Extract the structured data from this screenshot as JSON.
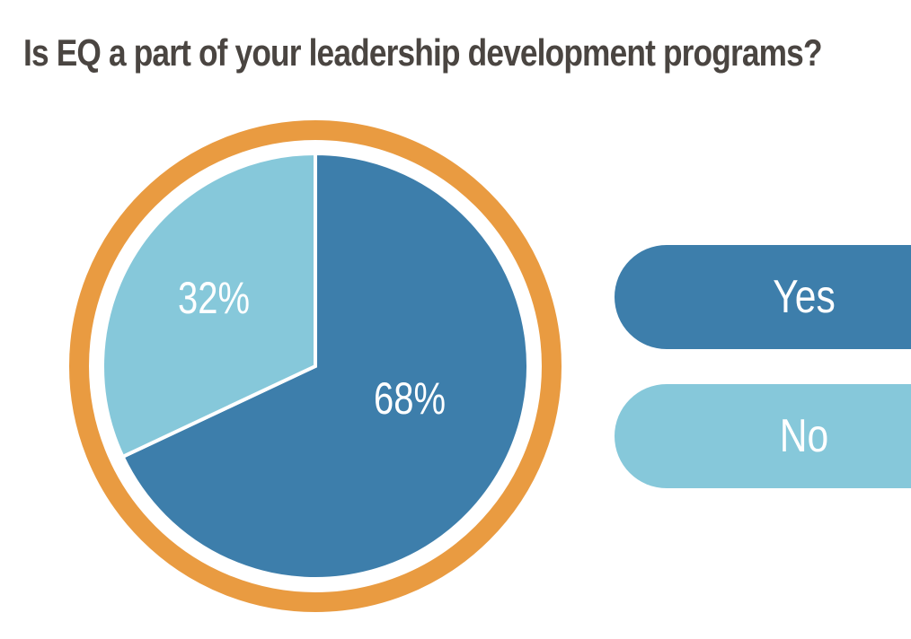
{
  "chart_data": {
    "type": "pie",
    "title": "Is EQ a part of your leadership development programs?",
    "slices": [
      {
        "name": "Yes",
        "value": 68,
        "label": "68%",
        "color": "#3d7eab"
      },
      {
        "name": "No",
        "value": 32,
        "label": "32%",
        "color": "#86c8da"
      }
    ],
    "ring_color": "#e99b41",
    "legend": {
      "placement": "right",
      "items": [
        {
          "label": "Yes",
          "color": "#3d7eab"
        },
        {
          "label": "No",
          "color": "#86c8da"
        }
      ]
    }
  }
}
